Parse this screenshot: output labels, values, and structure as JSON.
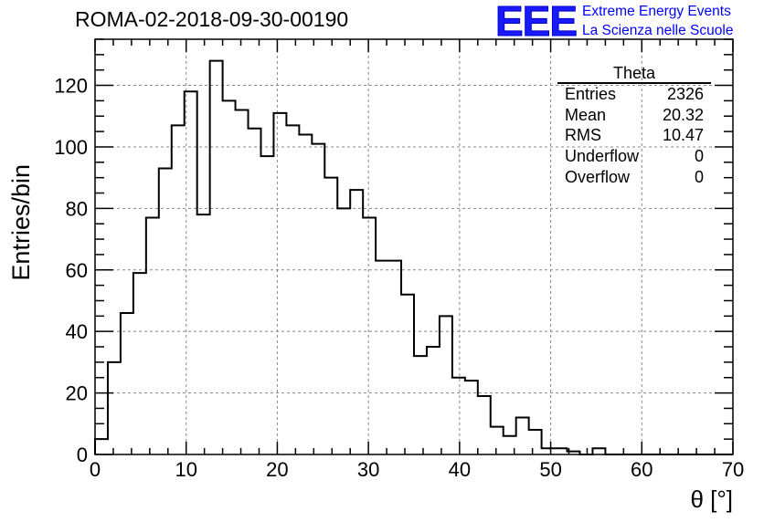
{
  "title": "ROMA-02-2018-09-30-00190",
  "logo": {
    "mark": "EEE",
    "line1": "Extreme Energy Events",
    "line2": "La Scienza nelle Scuole",
    "color": "#0000ff"
  },
  "stats": {
    "title": "Theta",
    "rows": [
      {
        "name": "Entries",
        "value": "2326"
      },
      {
        "name": "Mean",
        "value": "20.32"
      },
      {
        "name": "RMS",
        "value": "10.47"
      },
      {
        "name": "Underflow",
        "value": "0"
      },
      {
        "name": "Overflow",
        "value": "0"
      }
    ]
  },
  "chart_data": {
    "type": "bar",
    "title": "ROMA-02-2018-09-30-00190",
    "xlabel": "θ [°]",
    "ylabel": "Entries/bin",
    "xlim": [
      0,
      70
    ],
    "ylim": [
      0,
      135
    ],
    "grid": true,
    "bin_width": 1.4,
    "x_ticks": [
      0,
      10,
      20,
      30,
      40,
      50,
      60,
      70
    ],
    "y_ticks": [
      0,
      20,
      40,
      60,
      80,
      100,
      120
    ],
    "values": [
      5,
      30,
      46,
      59,
      77,
      93,
      107,
      118,
      78,
      128,
      115,
      112,
      106,
      97,
      111,
      107,
      104,
      101,
      90,
      80,
      86,
      77,
      63,
      63,
      52,
      32,
      35,
      45,
      25,
      24,
      19,
      9,
      6,
      12,
      8,
      2,
      2,
      1,
      0,
      2,
      0,
      0,
      0,
      0,
      0,
      0,
      0,
      0,
      0,
      0
    ]
  }
}
